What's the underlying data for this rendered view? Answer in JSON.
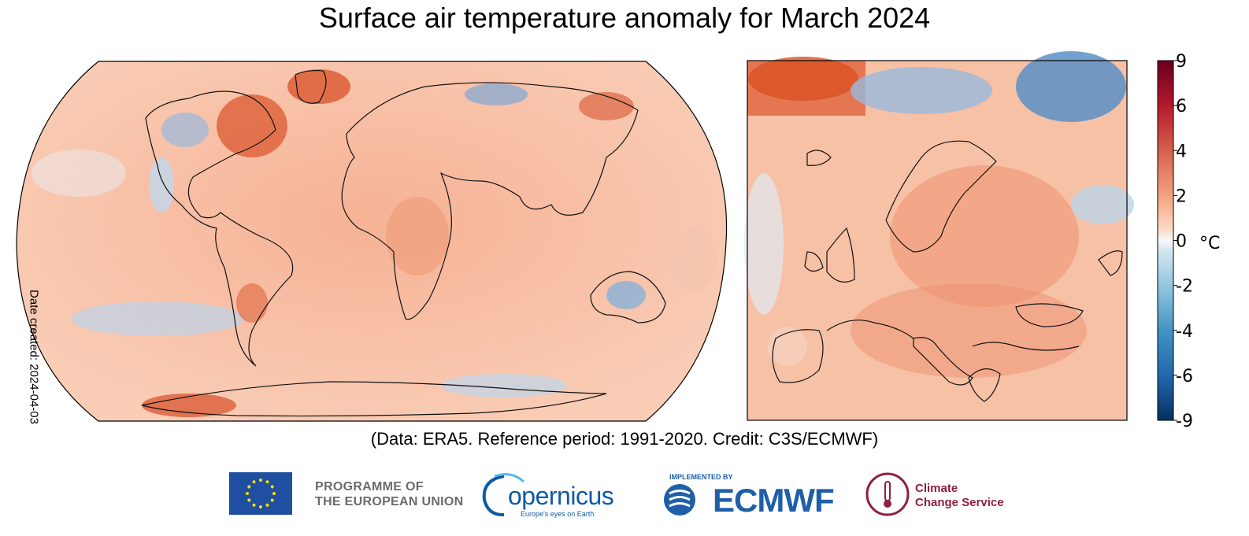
{
  "title": "Surface air temperature anomaly for March 2024",
  "date_created": "Date created: 2024-04-03",
  "credit": "(Data: ERA5.  Reference period: 1991-2020.  Credit: C3S/ECMWF)",
  "colorbar": {
    "unit": "°C",
    "ticks": [
      "9",
      "6",
      "4",
      "2",
      "0",
      "-2",
      "-4",
      "-6",
      "-9"
    ],
    "colors": [
      "#67001f",
      "#b2182b",
      "#d6604d",
      "#f4a582",
      "#fddbc7",
      "#f7f7f7",
      "#d1e5f0",
      "#92c5de",
      "#4393c3",
      "#2166ac",
      "#053061"
    ]
  },
  "maps": {
    "global": {
      "projection": "Robinson",
      "region": "Global"
    },
    "europe": {
      "region": "Europe"
    }
  },
  "logos": {
    "eu_line1": "PROGRAMME OF",
    "eu_line2": "THE EUROPEAN UNION",
    "copernicus": "opernicus",
    "copernicus_tagline": "Europe's eyes on Earth",
    "ecmwf_implemented": "IMPLEMENTED BY",
    "ecmwf": "ECMWF",
    "c3s_line1": "Climate",
    "c3s_line2": "Change Service"
  }
}
